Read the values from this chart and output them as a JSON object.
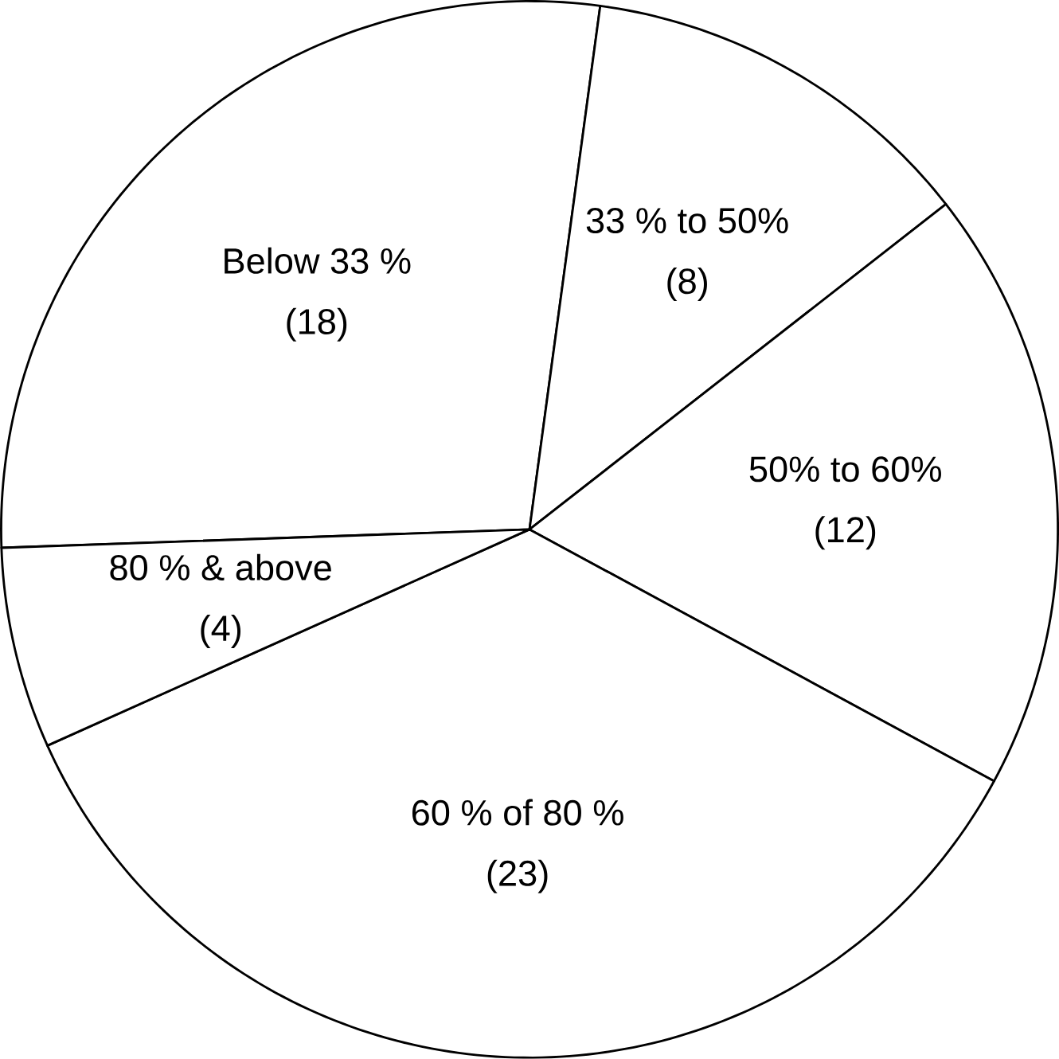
{
  "chart_data": {
    "type": "pie",
    "categories": [
      "Below 33 %",
      "33 % to 50%",
      "50% to 60%",
      "60 % of 80 %",
      "80 % & above"
    ],
    "values": [
      18,
      8,
      12,
      23,
      4
    ],
    "value_labels": [
      "(18)",
      "(8)",
      "(12)",
      "(23)",
      "(4)"
    ],
    "colors": [
      "#ffffff",
      "#ffffff",
      "#ffffff",
      "#ffffff",
      "#ffffff"
    ]
  }
}
